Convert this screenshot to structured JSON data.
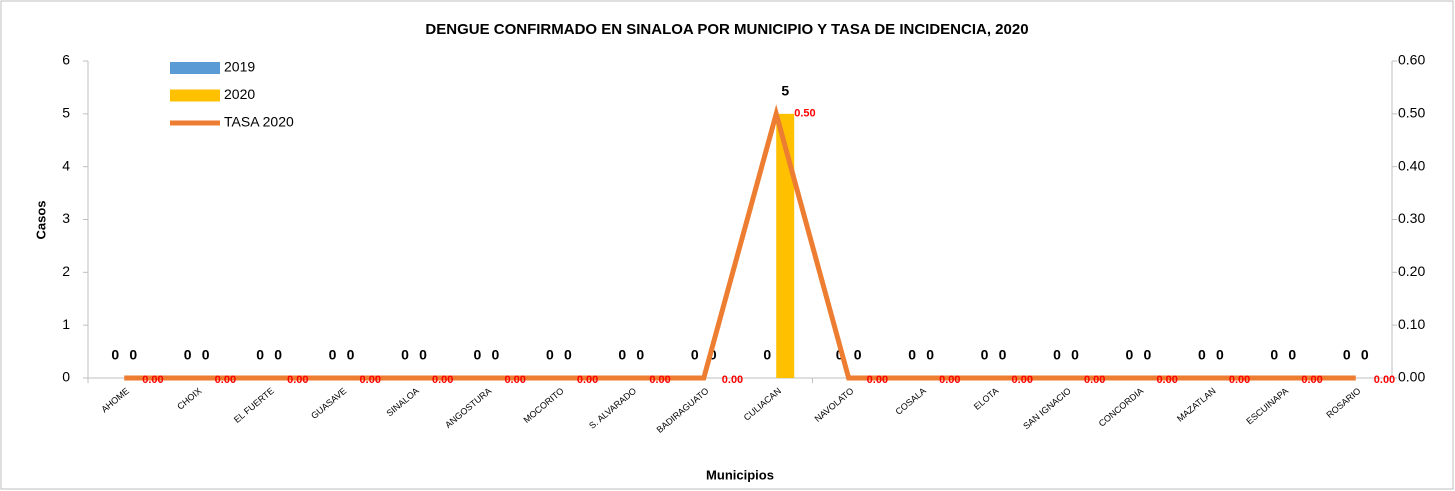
{
  "chart_data": {
    "type": "bar",
    "title": "DENGUE CONFIRMADO EN SINALOA POR MUNICIPIO Y TASA DE INCIDENCIA, 2020",
    "xlabel": "Municipios",
    "ylabel": "Casos",
    "categories": [
      "AHOME",
      "CHOIX",
      "EL FUERTE",
      "GUASAVE",
      "SINALOA",
      "ANGOSTURA",
      "MOCORITO",
      "S. ALVARADO",
      "BADIRAGUATO",
      "CULIACAN",
      "NAVOLATO",
      "COSALA",
      "ELOTA",
      "SAN IGNACIO",
      "CONCORDIA",
      "MAZATLAN",
      "ESCUINAPA",
      "ROSARIO"
    ],
    "series": [
      {
        "name": "2019",
        "type": "bar",
        "color": "#5b9bd5",
        "values": [
          0,
          0,
          0,
          0,
          0,
          0,
          0,
          0,
          0,
          0,
          0,
          0,
          0,
          0,
          0,
          0,
          0,
          0
        ]
      },
      {
        "name": "2020",
        "type": "bar",
        "color": "#ffc000",
        "values": [
          0,
          0,
          0,
          0,
          0,
          0,
          0,
          0,
          0,
          5,
          0,
          0,
          0,
          0,
          0,
          0,
          0,
          0
        ]
      },
      {
        "name": "TASA 2020",
        "type": "line",
        "axis": "y2",
        "color": "#ed7d31",
        "values": [
          0,
          0,
          0,
          0,
          0,
          0,
          0,
          0,
          0,
          0.5,
          0,
          0,
          0,
          0,
          0,
          0,
          0,
          0
        ],
        "value_labels": [
          "0.00",
          "0.00",
          "0.00",
          "0.00",
          "0.00",
          "0.00",
          "0.00",
          "0.00",
          "0.00",
          "0.50",
          "0.00",
          "0.00",
          "0.00",
          "0.00",
          "0.00",
          "0.00",
          "0.00",
          "0.00"
        ]
      }
    ],
    "ylim": [
      0,
      6
    ],
    "yticks": [
      0,
      1,
      2,
      3,
      4,
      5,
      6
    ],
    "y2lim": [
      0,
      0.6
    ],
    "y2ticks": [
      {
        "value": 0,
        "label": "0.00"
      },
      {
        "value": 0.1,
        "label": "0.10"
      },
      {
        "value": 0.2,
        "label": "0.20"
      },
      {
        "value": 0.3,
        "label": "0.30"
      },
      {
        "value": 0.4,
        "label": "0.40"
      },
      {
        "value": 0.5,
        "label": "0.50"
      },
      {
        "value": 0.6,
        "label": "0.60"
      }
    ],
    "grid": false,
    "legend": "upper-left"
  }
}
